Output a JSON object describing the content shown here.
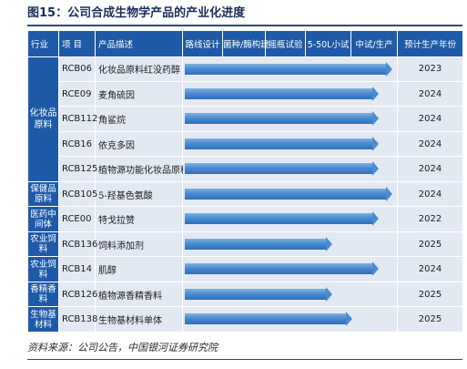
{
  "figure": {
    "title": "图15：公司合成生物学产品的产业化进度",
    "source": "资料来源：公司公告，中国银河证券研究院"
  },
  "table": {
    "headers": [
      "行业",
      "项 目",
      "产品描述",
      "路线设计",
      "菌种/酶构建",
      "摇瓶试验",
      "5-50L小试",
      "中试/生产",
      "预计生产年份"
    ],
    "categories": [
      {
        "label": "化妆品原料",
        "rowspan": 5
      },
      {
        "label": "保健品原料",
        "rowspan": 1
      },
      {
        "label": "医药中间体",
        "rowspan": 1
      },
      {
        "label": "农业饲料",
        "rowspan": 1
      },
      {
        "label": "农业饲料",
        "rowspan": 1
      },
      {
        "label": "香精香料",
        "rowspan": 1
      },
      {
        "label": "生物基材料",
        "rowspan": 1
      }
    ],
    "rows": [
      {
        "code": "RCB06",
        "desc": "化妆品原料红没药醇",
        "progress": 1.0,
        "year": "2023"
      },
      {
        "code": "RCE09",
        "desc": "麦角硫因",
        "progress": 0.93,
        "year": "2024"
      },
      {
        "code": "RCB112",
        "desc": "角鲨烷",
        "progress": 0.93,
        "year": "2024"
      },
      {
        "code": "RCB16",
        "desc": "依克多因",
        "progress": 0.93,
        "year": "2024"
      },
      {
        "code": "RCB125",
        "desc": "植物源功能化妆品原料",
        "progress": 0.93,
        "year": "2024"
      },
      {
        "code": "RCB105",
        "desc": "5-羟基色氨酸",
        "progress": 1.0,
        "year": "2024"
      },
      {
        "code": "RCE00",
        "desc": "特戈拉赞",
        "progress": 0.93,
        "year": "2022"
      },
      {
        "code": "RCB136",
        "desc": "饲料添加剂",
        "progress": 0.7,
        "year": "2025"
      },
      {
        "code": "RCB14",
        "desc": "肌醇",
        "progress": 0.93,
        "year": "2024"
      },
      {
        "code": "RCB126",
        "desc": "植物源香精香料",
        "progress": 0.7,
        "year": "2025"
      },
      {
        "code": "RCB138",
        "desc": "生物基材料单体",
        "progress": 0.8,
        "year": "2025"
      }
    ]
  },
  "colors": {
    "header_bg": "#1e5aa7",
    "row_bg": "#e3e9f3",
    "bar": "#4a8cd0"
  }
}
